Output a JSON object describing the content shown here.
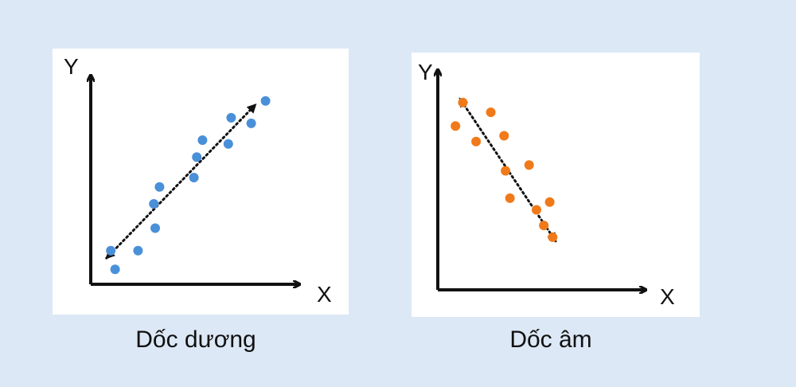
{
  "diagrams": [
    {
      "caption": "Dốc dương",
      "x_label": "X",
      "y_label": "Y",
      "dot_color": "#4a90d9",
      "trend": "positive",
      "points": [
        [
          0.14,
          0.18
        ],
        [
          0.17,
          0.08
        ],
        [
          0.33,
          0.18
        ],
        [
          0.45,
          0.3
        ],
        [
          0.44,
          0.43
        ],
        [
          0.48,
          0.52
        ],
        [
          0.72,
          0.57
        ],
        [
          0.74,
          0.68
        ],
        [
          0.78,
          0.77
        ],
        [
          0.98,
          0.89
        ],
        [
          0.96,
          0.75
        ],
        [
          1.22,
          0.98
        ],
        [
          1.12,
          0.86
        ]
      ]
    },
    {
      "caption": "Dốc âm",
      "x_label": "X",
      "y_label": "Y",
      "dot_color": "#f07a1a",
      "trend": "negative",
      "points": [
        [
          0.17,
          0.96
        ],
        [
          0.12,
          0.84
        ],
        [
          0.36,
          0.91
        ],
        [
          0.26,
          0.76
        ],
        [
          0.45,
          0.79
        ],
        [
          0.46,
          0.61
        ],
        [
          0.62,
          0.64
        ],
        [
          0.49,
          0.47
        ],
        [
          0.76,
          0.45
        ],
        [
          0.67,
          0.41
        ],
        [
          0.78,
          0.27
        ],
        [
          0.72,
          0.33
        ]
      ]
    }
  ]
}
